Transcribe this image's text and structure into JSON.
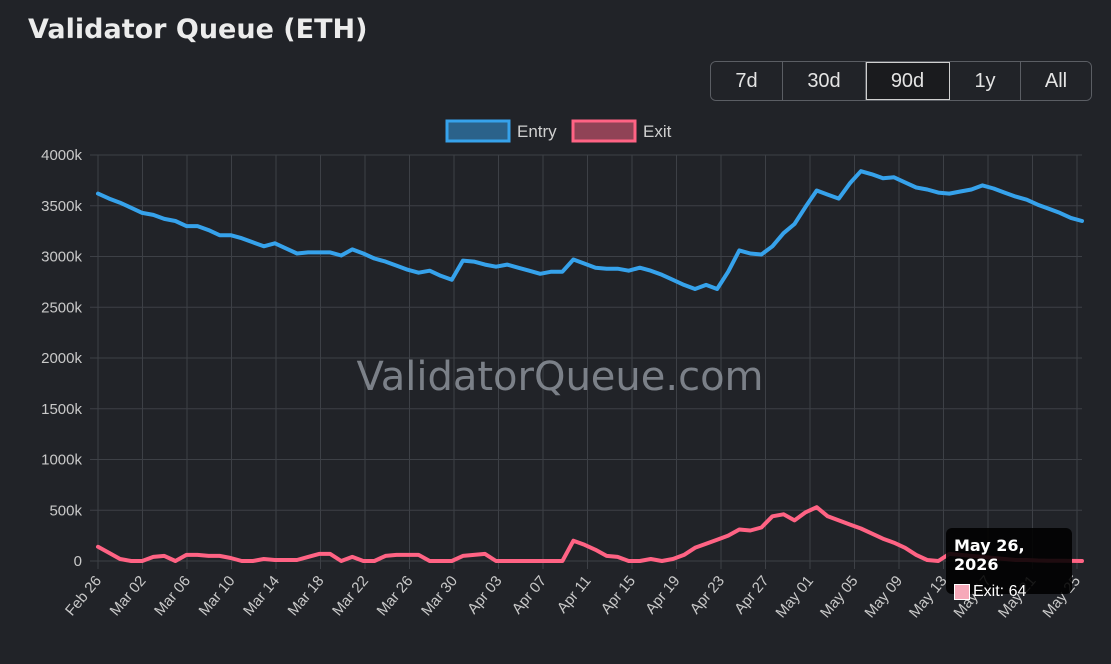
{
  "header": {
    "title": "Validator Queue (ETH)"
  },
  "range_buttons": [
    {
      "label": "7d",
      "active": false
    },
    {
      "label": "30d",
      "active": false
    },
    {
      "label": "90d",
      "active": true
    },
    {
      "label": "1y",
      "active": false
    },
    {
      "label": "All",
      "active": false
    }
  ],
  "watermark": "ValidatorQueue.com",
  "tooltip": {
    "title": "May 26, 2026",
    "series": "Exit",
    "value": "64",
    "label": "Exit: 64"
  },
  "colors": {
    "entry": "#36a2eb",
    "exit": "#ff6384",
    "background": "#212328",
    "grid": "#3d4046"
  },
  "chart_data": {
    "type": "line",
    "title": "Validator Queue (ETH)",
    "y_ticks": [
      "0",
      "500k",
      "1000k",
      "1500k",
      "2000k",
      "2500k",
      "3000k",
      "3500k",
      "4000k"
    ],
    "ylim": [
      0,
      4000000
    ],
    "x_ticks": [
      "Feb 26",
      "Mar 02",
      "Mar 06",
      "Mar 10",
      "Mar 14",
      "Mar 18",
      "Mar 22",
      "Mar 26",
      "Mar 30",
      "Apr 03",
      "Apr 07",
      "Apr 11",
      "Apr 15",
      "Apr 19",
      "Apr 23",
      "Apr 27",
      "May 01",
      "May 05",
      "May 09",
      "May 13",
      "May 17",
      "May 21",
      "May 25"
    ],
    "grid": true,
    "legend": "top-center",
    "series": [
      {
        "name": "Entry",
        "color": "#36a2eb",
        "values": [
          3620000,
          3570000,
          3530000,
          3480000,
          3430000,
          3410000,
          3370000,
          3350000,
          3300000,
          3300000,
          3260000,
          3210000,
          3210000,
          3180000,
          3140000,
          3100000,
          3130000,
          3080000,
          3030000,
          3040000,
          3040000,
          3040000,
          3010000,
          3070000,
          3030000,
          2980000,
          2950000,
          2910000,
          2870000,
          2840000,
          2860000,
          2810000,
          2770000,
          2960000,
          2950000,
          2920000,
          2900000,
          2920000,
          2890000,
          2860000,
          2830000,
          2850000,
          2850000,
          2970000,
          2930000,
          2890000,
          2880000,
          2880000,
          2860000,
          2890000,
          2860000,
          2820000,
          2770000,
          2720000,
          2680000,
          2720000,
          2680000,
          2850000,
          3060000,
          3030000,
          3020000,
          3100000,
          3230000,
          3320000,
          3490000,
          3650000,
          3610000,
          3570000,
          3720000,
          3840000,
          3810000,
          3770000,
          3780000,
          3730000,
          3680000,
          3660000,
          3630000,
          3620000,
          3640000,
          3660000,
          3700000,
          3670000,
          3630000,
          3590000,
          3560000,
          3510000,
          3470000,
          3430000,
          3380000,
          3350000
        ]
      },
      {
        "name": "Exit",
        "color": "#ff6384",
        "values": [
          140000,
          80000,
          20000,
          0,
          0,
          40000,
          50000,
          0,
          60000,
          60000,
          50000,
          50000,
          30000,
          0,
          0,
          20000,
          10000,
          10000,
          10000,
          40000,
          70000,
          70000,
          0,
          40000,
          0,
          0,
          50000,
          60000,
          60000,
          60000,
          0,
          0,
          0,
          50000,
          60000,
          70000,
          0,
          0,
          0,
          0,
          0,
          0,
          0,
          200000,
          160000,
          110000,
          50000,
          40000,
          0,
          0,
          20000,
          0,
          20000,
          60000,
          130000,
          170000,
          210000,
          250000,
          310000,
          300000,
          330000,
          440000,
          460000,
          400000,
          480000,
          530000,
          440000,
          400000,
          360000,
          320000,
          270000,
          220000,
          180000,
          130000,
          60000,
          10000,
          0,
          70000,
          60000,
          50000,
          40000,
          30000,
          20000,
          10000,
          10000,
          5000,
          3000,
          2000,
          1000,
          64
        ]
      }
    ]
  }
}
